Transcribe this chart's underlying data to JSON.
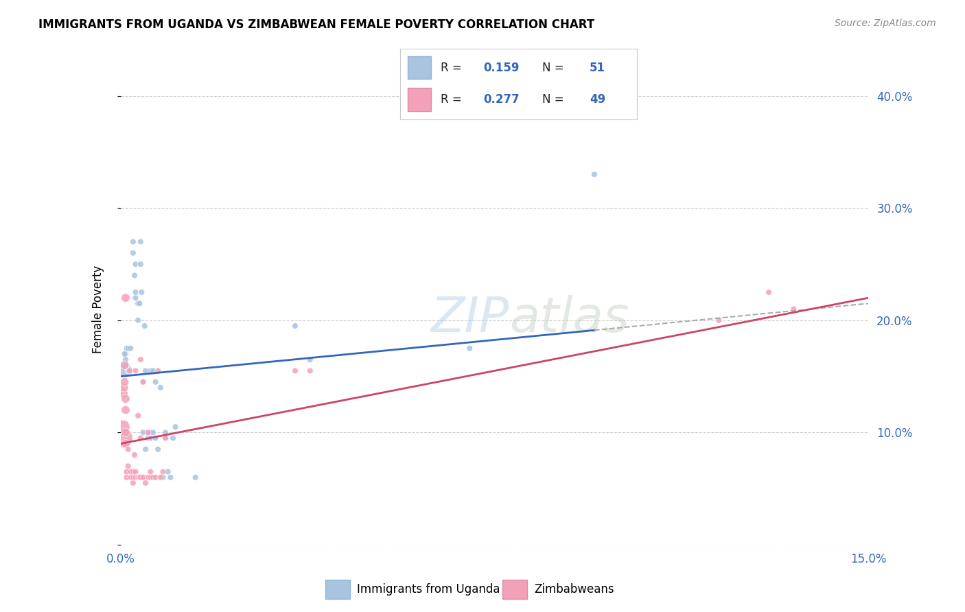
{
  "title": "IMMIGRANTS FROM UGANDA VS ZIMBABWEAN FEMALE POVERTY CORRELATION CHART",
  "source": "Source: ZipAtlas.com",
  "ylabel": "Female Poverty",
  "legend_label1": "Immigrants from Uganda",
  "legend_label2": "Zimbabweans",
  "R1": 0.159,
  "N1": 51,
  "R2": 0.277,
  "N2": 49,
  "color1": "#a8c4e0",
  "color2": "#f4a0b8",
  "line_color1": "#3366bb",
  "line_color2": "#cc4466",
  "watermark": "ZIPatlas",
  "xlim": [
    0.0,
    0.15
  ],
  "ylim": [
    0.0,
    0.42
  ],
  "xticks": [
    0.0,
    0.03,
    0.06,
    0.09,
    0.12,
    0.15
  ],
  "xticklabels": [
    "0.0%",
    "",
    "",
    "",
    "",
    "15.0%"
  ],
  "yticks_right": [
    0.0,
    0.1,
    0.2,
    0.3,
    0.4
  ],
  "yticklabels_right": [
    "",
    "10.0%",
    "20.0%",
    "30.0%",
    "40.0%"
  ],
  "blue_line_x0": 0.0,
  "blue_line_y0": 0.15,
  "blue_line_x1": 0.15,
  "blue_line_y1": 0.215,
  "pink_line_x0": 0.0,
  "pink_line_y0": 0.09,
  "pink_line_x1": 0.15,
  "pink_line_y1": 0.22,
  "uganda_x": [
    0.001,
    0.0012,
    0.0015,
    0.001,
    0.001,
    0.0008,
    0.0012,
    0.0015,
    0.0015,
    0.0018,
    0.002,
    0.0025,
    0.0025,
    0.0028,
    0.003,
    0.003,
    0.003,
    0.0035,
    0.0035,
    0.0038,
    0.004,
    0.004,
    0.0042,
    0.0045,
    0.0045,
    0.0048,
    0.005,
    0.005,
    0.0055,
    0.0055,
    0.006,
    0.006,
    0.006,
    0.0065,
    0.0065,
    0.007,
    0.007,
    0.0075,
    0.008,
    0.0085,
    0.009,
    0.009,
    0.0095,
    0.01,
    0.0105,
    0.011,
    0.015,
    0.035,
    0.038,
    0.07,
    0.095
  ],
  "uganda_y": [
    0.155,
    0.175,
    0.155,
    0.17,
    0.165,
    0.17,
    0.16,
    0.175,
    0.155,
    0.155,
    0.175,
    0.26,
    0.27,
    0.24,
    0.22,
    0.25,
    0.225,
    0.215,
    0.2,
    0.215,
    0.25,
    0.27,
    0.225,
    0.1,
    0.145,
    0.195,
    0.085,
    0.155,
    0.095,
    0.1,
    0.155,
    0.095,
    0.1,
    0.155,
    0.1,
    0.145,
    0.095,
    0.085,
    0.14,
    0.06,
    0.095,
    0.1,
    0.065,
    0.06,
    0.095,
    0.105,
    0.06,
    0.195,
    0.165,
    0.175,
    0.33
  ],
  "uganda_sizes": [
    200,
    40,
    40,
    40,
    40,
    40,
    40,
    40,
    40,
    40,
    40,
    40,
    40,
    40,
    40,
    40,
    40,
    40,
    40,
    40,
    40,
    40,
    40,
    40,
    40,
    40,
    40,
    40,
    40,
    40,
    40,
    40,
    40,
    40,
    40,
    40,
    40,
    40,
    40,
    40,
    40,
    40,
    40,
    40,
    40,
    40,
    40,
    40,
    40,
    40,
    40
  ],
  "zim_x": [
    0.0005,
    0.0005,
    0.0005,
    0.0007,
    0.0008,
    0.0008,
    0.001,
    0.001,
    0.001,
    0.001,
    0.001,
    0.0012,
    0.0012,
    0.0015,
    0.0015,
    0.0018,
    0.002,
    0.002,
    0.0025,
    0.0025,
    0.0025,
    0.0028,
    0.003,
    0.003,
    0.003,
    0.0035,
    0.0035,
    0.0038,
    0.004,
    0.004,
    0.004,
    0.0045,
    0.0045,
    0.005,
    0.0055,
    0.0055,
    0.006,
    0.006,
    0.0065,
    0.007,
    0.0075,
    0.008,
    0.0085,
    0.009,
    0.035,
    0.038,
    0.12,
    0.13,
    0.135
  ],
  "zim_y": [
    0.095,
    0.105,
    0.135,
    0.14,
    0.145,
    0.16,
    0.09,
    0.1,
    0.12,
    0.13,
    0.22,
    0.06,
    0.065,
    0.07,
    0.085,
    0.155,
    0.06,
    0.065,
    0.055,
    0.06,
    0.065,
    0.08,
    0.06,
    0.065,
    0.155,
    0.06,
    0.115,
    0.06,
    0.06,
    0.095,
    0.165,
    0.06,
    0.145,
    0.055,
    0.06,
    0.1,
    0.06,
    0.065,
    0.06,
    0.06,
    0.155,
    0.06,
    0.065,
    0.095,
    0.155,
    0.155,
    0.2,
    0.225,
    0.21
  ],
  "zim_sizes": [
    400,
    200,
    100,
    80,
    80,
    80,
    80,
    80,
    80,
    80,
    80,
    40,
    40,
    40,
    40,
    40,
    40,
    40,
    40,
    40,
    40,
    40,
    40,
    40,
    40,
    40,
    40,
    40,
    40,
    40,
    40,
    40,
    40,
    40,
    40,
    40,
    40,
    40,
    40,
    40,
    40,
    40,
    40,
    40,
    40,
    40,
    40,
    40,
    40
  ]
}
